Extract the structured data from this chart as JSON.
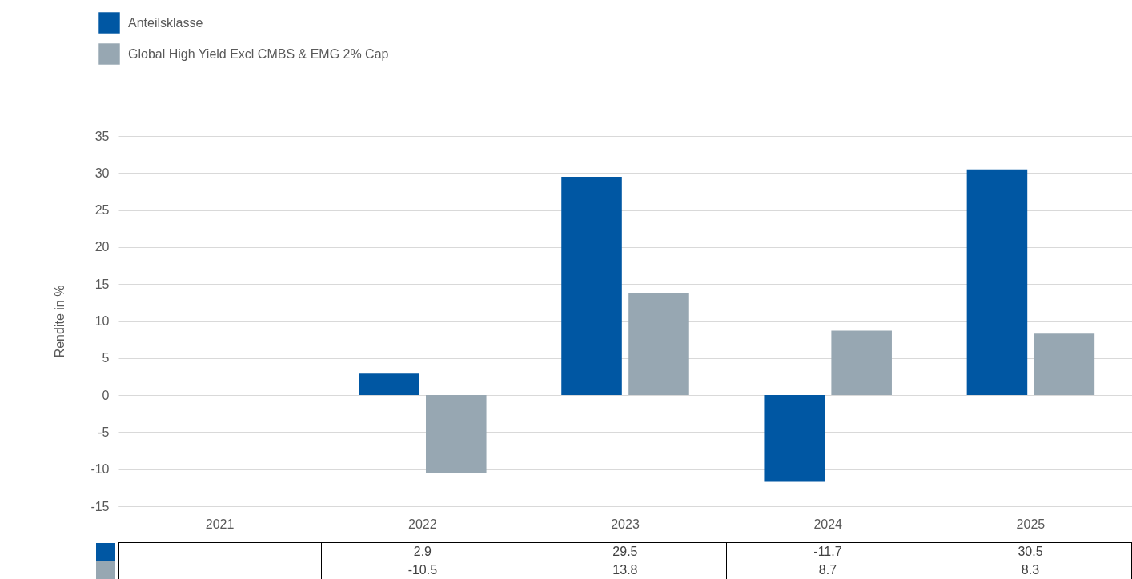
{
  "chart_data": {
    "type": "bar",
    "ylabel": "Rendite in %",
    "categories": [
      "2021",
      "2022",
      "2023",
      "2024",
      "2025"
    ],
    "series": [
      {
        "name": "Anteilsklasse",
        "color": "#0057a3",
        "values": [
          null,
          2.9,
          29.5,
          -11.7,
          30.5
        ]
      },
      {
        "name": "Global High Yield Excl CMBS & EMG 2% Cap",
        "color": "#97a7b2",
        "values": [
          null,
          -10.5,
          13.8,
          8.7,
          8.3
        ]
      }
    ],
    "ylim": [
      -15,
      35
    ],
    "yticks": [
      -15,
      -10,
      -5,
      0,
      5,
      10,
      15,
      20,
      25,
      30,
      35
    ],
    "grid": "y",
    "legend": "top left",
    "data_labels": true
  }
}
